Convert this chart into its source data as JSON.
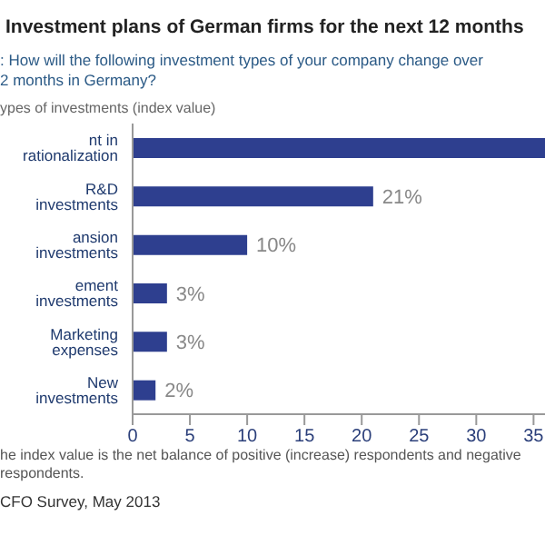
{
  "chart_data": {
    "type": "bar",
    "orientation": "horizontal",
    "title": "Investment plans of German firms for the next 12 months",
    "subtitle": ": How will the following investment types of your company change over\n2 months in Germany?",
    "ylabel": "ypes of investments (index value)",
    "categories": [
      "nt in rationalization",
      "R&D investments",
      "ansion investments",
      "ement investments",
      "Marketing expenses",
      "New investments"
    ],
    "values": [
      36,
      21,
      10,
      3,
      3,
      2
    ],
    "value_labels": [
      null,
      "21%",
      "10%",
      "3%",
      "3%",
      "2%"
    ],
    "color": "#2e3f8f",
    "xlim": [
      0,
      36
    ],
    "xticks": [
      0,
      5,
      10,
      15,
      20,
      25,
      30,
      35
    ],
    "grid": false,
    "annotations": [
      "he index value is the net balance of positive (increase) respondents and negative\nrespondents.",
      "CFO Survey, May 2013"
    ]
  }
}
